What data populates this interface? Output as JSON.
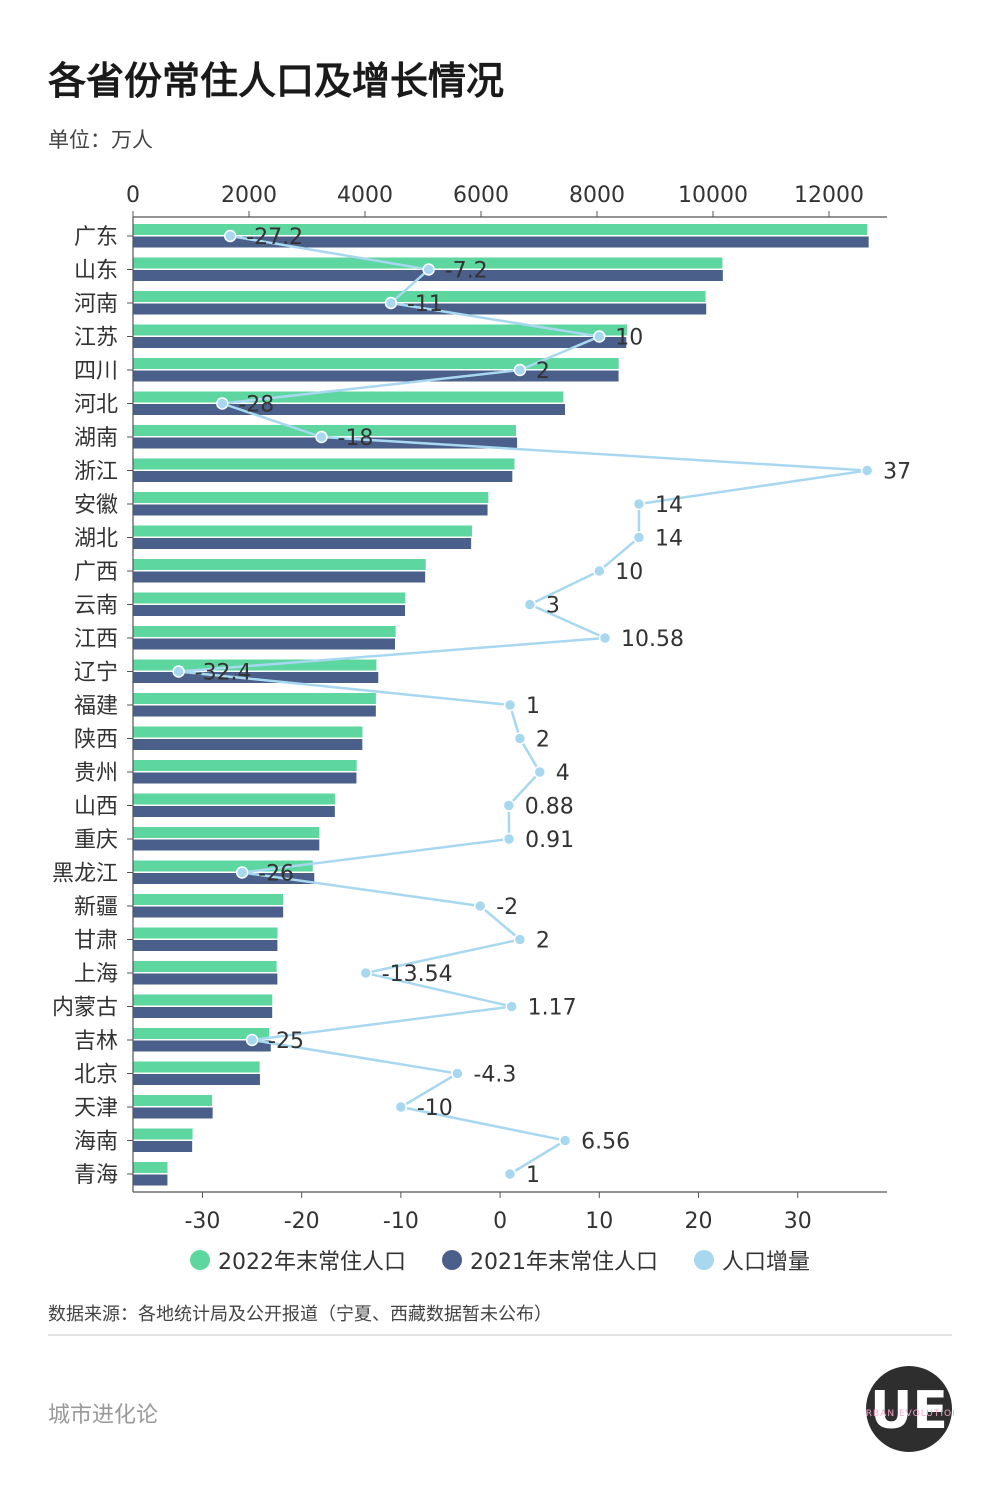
{
  "header": {
    "title": "各省份常住人口及增长情况",
    "unit": "单位：万人"
  },
  "legend": {
    "items": [
      {
        "label": "2022年末常住人口",
        "color": "#5ed6a0"
      },
      {
        "label": "2021年末常住人口",
        "color": "#4a5f8a"
      },
      {
        "label": "人口增量",
        "color": "#a8d8f0"
      }
    ]
  },
  "footer": {
    "source": "数据来源：各地统计局及公开报道（宁夏、西藏数据暂未公布）",
    "brand": "城市进化论"
  },
  "logo": {
    "letters": "UE",
    "ring_text": "URBAN EVOLUTION"
  },
  "chart_data": {
    "type": "bar",
    "title": "各省份常住人口及增长情况",
    "ylabel": "单位：万人",
    "top_axis": {
      "min": 0,
      "max": 13000,
      "ticks": [
        0,
        2000,
        4000,
        6000,
        8000,
        10000,
        12000
      ]
    },
    "bottom_axis": {
      "min": -37,
      "max": 39,
      "ticks": [
        -30,
        -20,
        -10,
        0,
        10,
        20,
        30
      ]
    },
    "categories": [
      "广东",
      "山东",
      "河南",
      "江苏",
      "四川",
      "河北",
      "湖南",
      "浙江",
      "安徽",
      "湖北",
      "广西",
      "云南",
      "江西",
      "辽宁",
      "福建",
      "陕西",
      "贵州",
      "山西",
      "重庆",
      "黑龙江",
      "新疆",
      "甘肃",
      "上海",
      "内蒙古",
      "吉林",
      "北京",
      "天津",
      "海南",
      "青海"
    ],
    "series": [
      {
        "name": "2022年末常住人口",
        "type": "bar",
        "axis": "top",
        "color": "#5ed6a0",
        "values": [
          12657,
          10163,
          9872,
          8515,
          8374,
          7420,
          6604,
          6577,
          6127,
          5844,
          5047,
          4693,
          4528,
          4197,
          4188,
          3956,
          3856,
          3481,
          3213,
          3099,
          2587,
          2492,
          2476,
          2401,
          2348,
          2184,
          1363,
          1027,
          595
        ]
      },
      {
        "name": "2021年末常住人口",
        "type": "bar",
        "axis": "top",
        "color": "#4a5f8a",
        "values": [
          12684,
          10170,
          9883,
          8505,
          8372,
          7448,
          6622,
          6540,
          6113,
          5830,
          5037,
          4690,
          4517,
          4229,
          4187,
          3954,
          3852,
          3480,
          3212,
          3125,
          2589,
          2490,
          2489,
          2400,
          2375,
          2189,
          1373,
          1020,
          594
        ]
      },
      {
        "name": "人口增量",
        "type": "line",
        "axis": "bottom",
        "color": "#a8d8f0",
        "values": [
          -27.2,
          -7.2,
          -11,
          10,
          2,
          -28,
          -18,
          37,
          14,
          14,
          10,
          3,
          10.58,
          -32.4,
          1,
          2,
          4,
          0.88,
          0.91,
          -26,
          -2,
          2,
          -13.54,
          1.17,
          -25,
          -4.3,
          -10,
          6.56,
          1
        ],
        "labels": [
          "-27.2",
          "-7.2",
          "-11",
          "10",
          "2",
          "-28",
          "-18",
          "37",
          "14",
          "14",
          "10",
          "3",
          "10.58",
          "-32.4",
          "1",
          "2",
          "4",
          "0.88",
          "0.91",
          "-26",
          "-2",
          "2",
          "-13.54",
          "1.17",
          "-25",
          "-4.3",
          "-10",
          "6.56",
          "1"
        ]
      }
    ]
  }
}
